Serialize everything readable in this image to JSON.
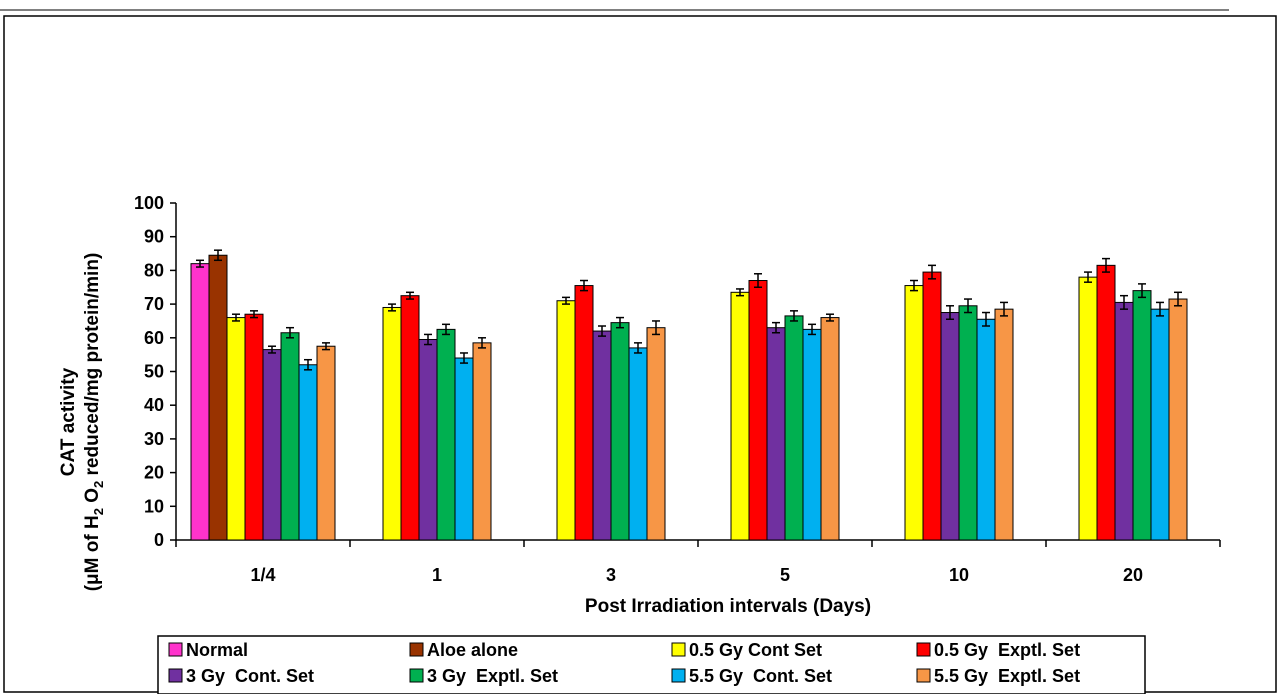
{
  "chart_data": {
    "type": "bar",
    "title": "",
    "xlabel": "Post Irradiation  intervals (Days)",
    "ylabel_line1": "CAT activity",
    "ylabel_line2_parts": [
      "(μM of H",
      "2",
      " O",
      "2",
      " reduced/mg protein/min)"
    ],
    "ylim": [
      0,
      100
    ],
    "yticks": [
      0,
      10,
      20,
      30,
      40,
      50,
      60,
      70,
      80,
      90,
      100
    ],
    "categories": [
      "1/4",
      "1",
      "3",
      "5",
      "10",
      "20"
    ],
    "legend_position": "bottom",
    "series": [
      {
        "name": "Normal",
        "color": "#ff33cc",
        "values": [
          82,
          null,
          null,
          null,
          null,
          null
        ],
        "errors": [
          1,
          null,
          null,
          null,
          null,
          null
        ]
      },
      {
        "name": "Aloe alone",
        "color": "#993300",
        "values": [
          84.5,
          null,
          null,
          null,
          null,
          null
        ],
        "errors": [
          1.5,
          null,
          null,
          null,
          null,
          null
        ]
      },
      {
        "name": "0.5 Gy Cont Set",
        "color": "#ffff00",
        "values": [
          66,
          69,
          71,
          73.5,
          75.5,
          78
        ],
        "errors": [
          1,
          1,
          1,
          1,
          1.5,
          1.5
        ]
      },
      {
        "name": "0.5 Gy  Exptl. Set",
        "color": "#ff0000",
        "values": [
          67,
          72.5,
          75.5,
          77,
          79.5,
          81.5
        ],
        "errors": [
          1,
          1,
          1.5,
          2,
          2,
          2
        ]
      },
      {
        "name": "3 Gy  Cont. Set",
        "color": "#7030a0",
        "values": [
          56.5,
          59.5,
          62,
          63,
          67.5,
          70.5
        ],
        "errors": [
          1,
          1.5,
          1.5,
          1.5,
          2,
          2
        ]
      },
      {
        "name": "3 Gy  Exptl. Set",
        "color": "#00b050",
        "values": [
          61.5,
          62.5,
          64.5,
          66.5,
          69.5,
          74
        ],
        "errors": [
          1.5,
          1.5,
          1.5,
          1.5,
          2,
          2
        ]
      },
      {
        "name": "5.5 Gy  Cont. Set",
        "color": "#00b0f0",
        "values": [
          52,
          54,
          57,
          62.5,
          65.5,
          68.5
        ],
        "errors": [
          1.5,
          1.5,
          1.5,
          1.5,
          2,
          2
        ]
      },
      {
        "name": "5.5 Gy  Exptl. Set",
        "color": "#f79646",
        "values": [
          57.5,
          58.5,
          63,
          66,
          68.5,
          71.5
        ],
        "errors": [
          1,
          1.5,
          2,
          1,
          2,
          2
        ]
      }
    ]
  }
}
